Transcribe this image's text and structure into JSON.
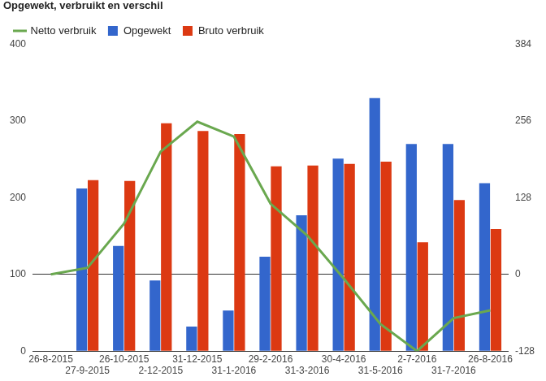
{
  "chart_data": {
    "type": "bar",
    "title": "Opgewekt, verbruikt en verschil",
    "categories": [
      "26-8-2015",
      "27-9-2015",
      "26-10-2015",
      "2-12-2015",
      "31-12-2015",
      "31-1-2016",
      "29-2-2016",
      "31-3-2016",
      "30-4-2016",
      "31-5-2016",
      "2-7-2016",
      "31-7-2016",
      "26-8-2016"
    ],
    "series": [
      {
        "name": "Opgewekt",
        "type": "bar",
        "color": "#3366cc",
        "axis": "y",
        "values": [
          null,
          212,
          137,
          92,
          32,
          53,
          123,
          177,
          251,
          330,
          270,
          270,
          219
        ]
      },
      {
        "name": "Bruto verbruik",
        "type": "bar",
        "color": "#dc3912",
        "axis": "y",
        "values": [
          null,
          223,
          222,
          297,
          287,
          283,
          241,
          242,
          244,
          247,
          142,
          197,
          159
        ]
      },
      {
        "name": "Netto verbruik",
        "type": "line",
        "color": "#6aa84f",
        "axis": "y2",
        "values": [
          0,
          11,
          85,
          205,
          255,
          230,
          118,
          65,
          -7,
          -83,
          -128,
          -73,
          -60
        ]
      }
    ],
    "ylim": [
      0,
      400
    ],
    "yticks": [
      0,
      100,
      200,
      300,
      400
    ],
    "y2lim": [
      -128,
      384
    ],
    "y2ticks": [
      -128,
      0,
      128,
      256,
      384
    ],
    "grid": false,
    "legend": "top"
  }
}
